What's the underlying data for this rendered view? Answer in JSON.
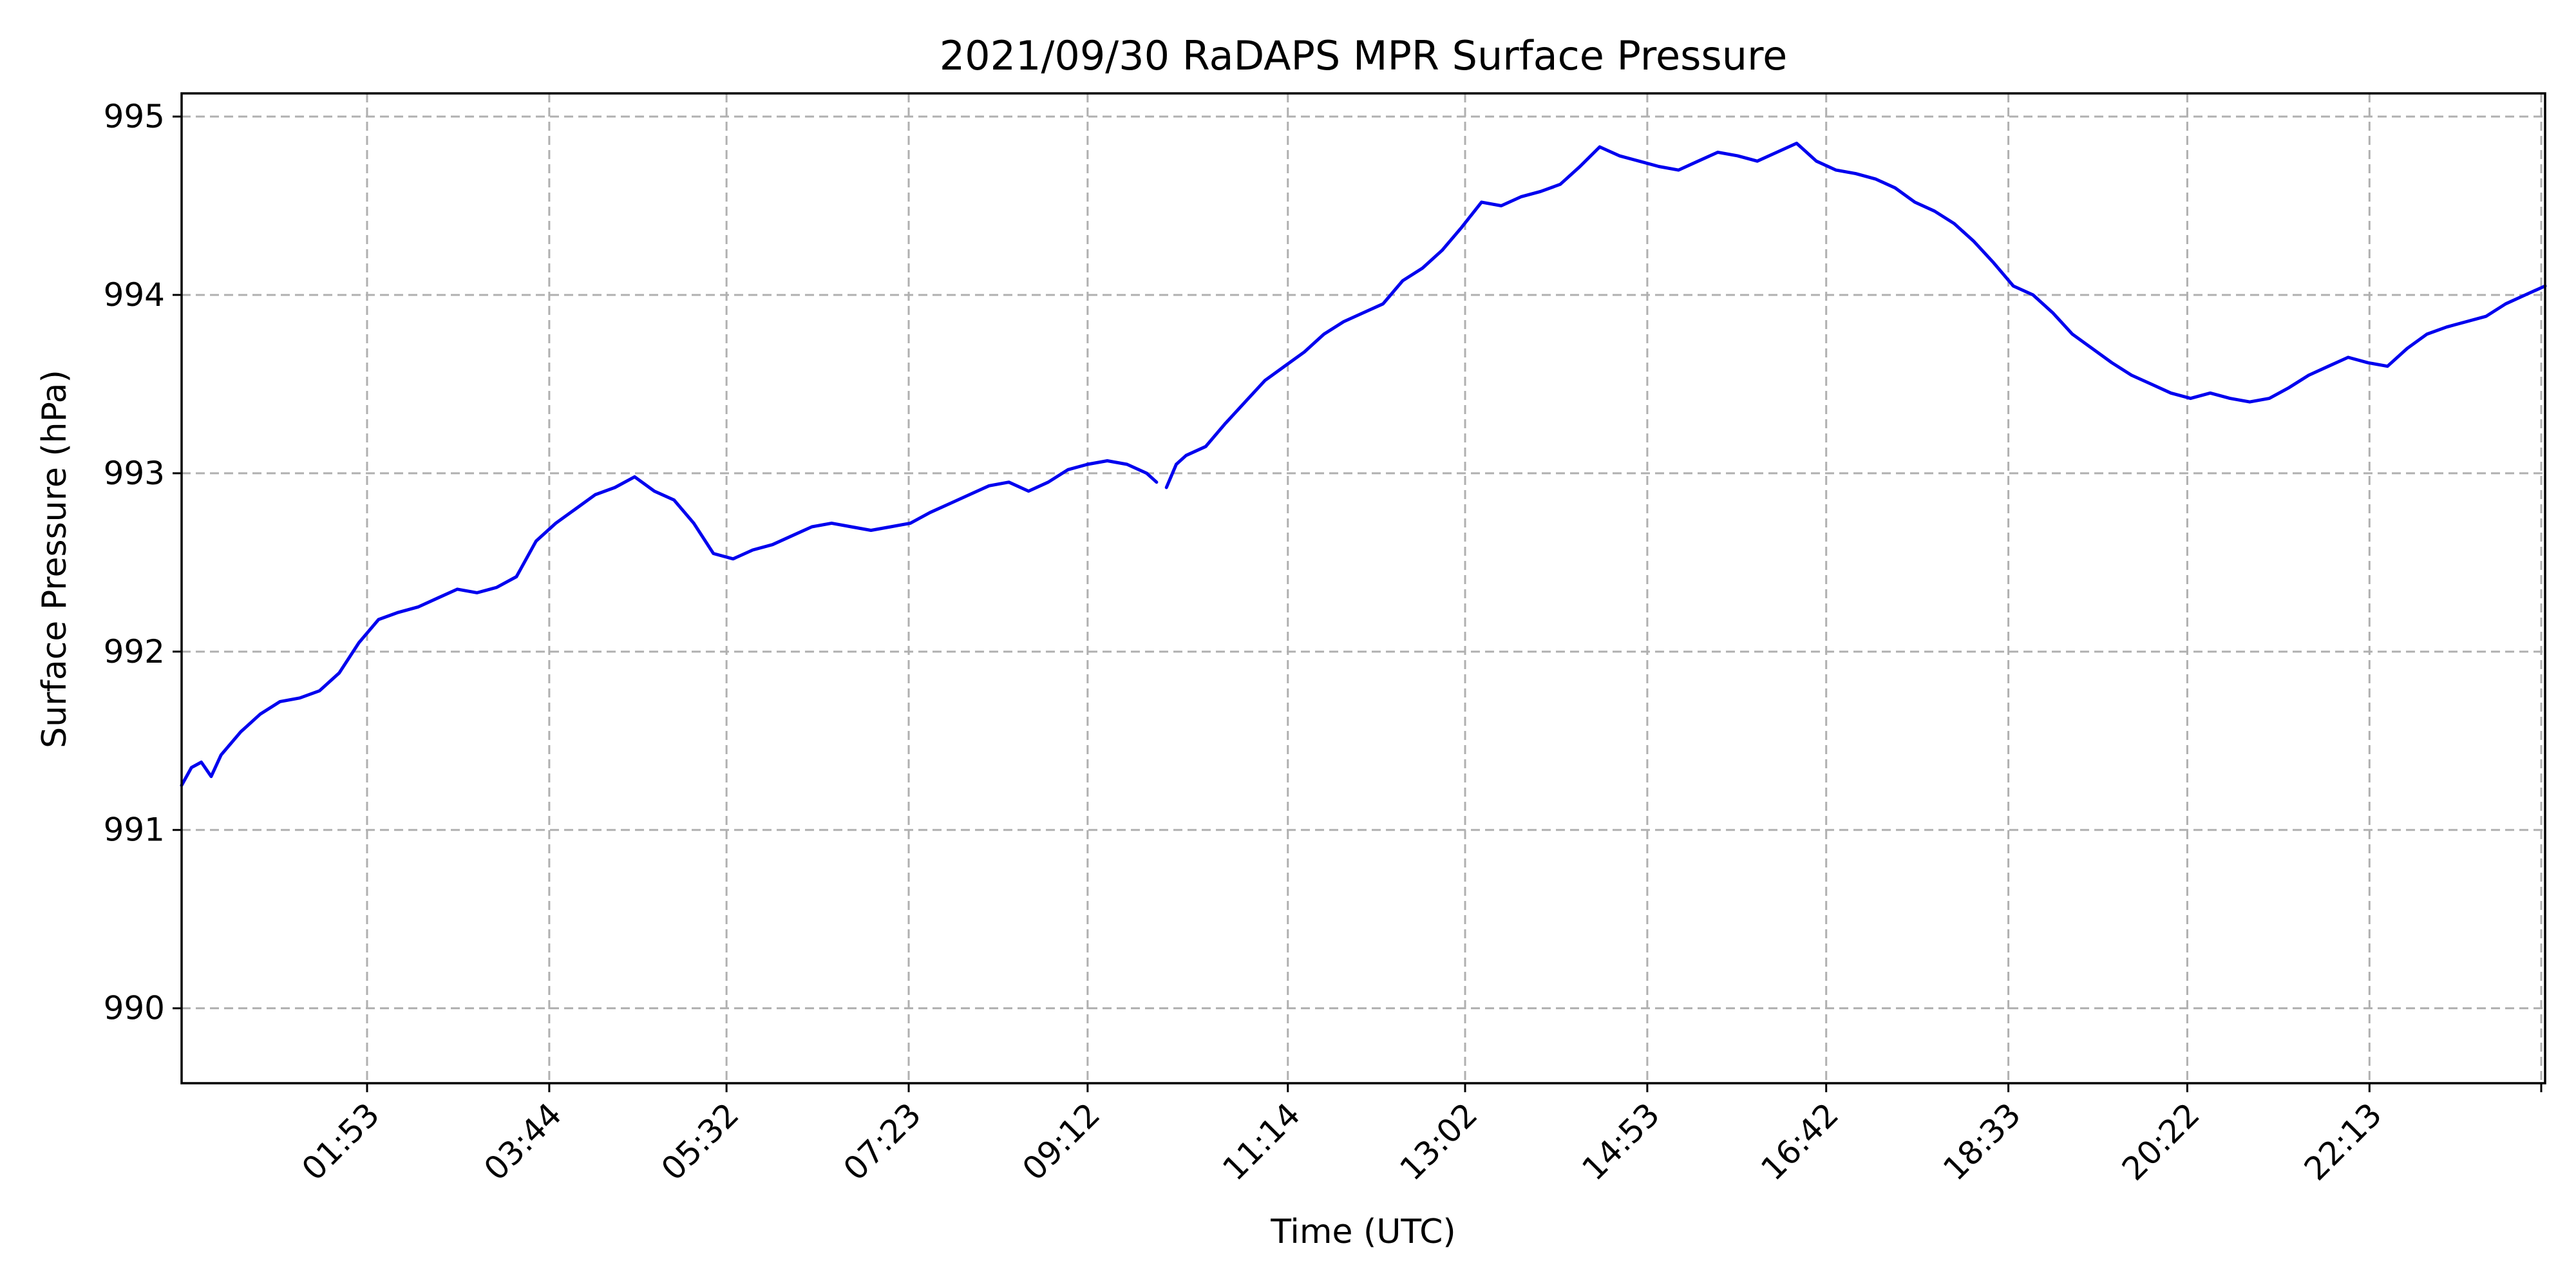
{
  "chart_data": {
    "type": "line",
    "title": "2021/09/30 RaDAPS MPR Surface Pressure",
    "xlabel": "Time (UTC)",
    "ylabel": "Surface Pressure (hPa)",
    "x_unit": "hours UTC",
    "xlim": [
      0.0,
      24.0
    ],
    "ylim": [
      989.58,
      995.13
    ],
    "grid": true,
    "legend": "none",
    "line_color": "#0000ee",
    "x_ticks": [
      {
        "value": 1.8833,
        "label": "01:53"
      },
      {
        "value": 3.7333,
        "label": "03:44"
      },
      {
        "value": 5.5333,
        "label": "05:32"
      },
      {
        "value": 7.3833,
        "label": "07:23"
      },
      {
        "value": 9.2,
        "label": "09:12"
      },
      {
        "value": 11.2333,
        "label": "11:14"
      },
      {
        "value": 13.0333,
        "label": "13:02"
      },
      {
        "value": 14.8833,
        "label": "14:53"
      },
      {
        "value": 16.7,
        "label": "16:42"
      },
      {
        "value": 18.55,
        "label": "18:33"
      },
      {
        "value": 20.3667,
        "label": "20:22"
      },
      {
        "value": 22.2167,
        "label": "22:13"
      }
    ],
    "y_ticks": [
      {
        "value": 990,
        "label": "990"
      },
      {
        "value": 991,
        "label": "991"
      },
      {
        "value": 992,
        "label": "992"
      },
      {
        "value": 993,
        "label": "993"
      },
      {
        "value": 994,
        "label": "994"
      },
      {
        "value": 995,
        "label": "995"
      }
    ],
    "series": [
      {
        "segments": [
          {
            "x": [
              0.0,
              0.1,
              0.2,
              0.3,
              0.4,
              0.6,
              0.8,
              1.0,
              1.2,
              1.4,
              1.6,
              1.8,
              2.0,
              2.2,
              2.4,
              2.6,
              2.8,
              3.0,
              3.2,
              3.4,
              3.6,
              3.8,
              4.0,
              4.2,
              4.4,
              4.6,
              4.8,
              5.0,
              5.2,
              5.4,
              5.6,
              5.8,
              6.0,
              6.2,
              6.4,
              6.6,
              6.8,
              7.0,
              7.2,
              7.4,
              7.6,
              7.8,
              8.0,
              8.2,
              8.4,
              8.6,
              8.8,
              9.0,
              9.2,
              9.4,
              9.6,
              9.8,
              9.9
            ],
            "y": [
              991.25,
              991.35,
              991.38,
              991.3,
              991.42,
              991.55,
              991.65,
              991.72,
              991.74,
              991.78,
              991.88,
              992.05,
              992.18,
              992.22,
              992.25,
              992.3,
              992.35,
              992.33,
              992.36,
              992.42,
              992.62,
              992.72,
              992.8,
              992.88,
              992.92,
              992.98,
              992.9,
              992.85,
              992.72,
              992.55,
              992.52,
              992.57,
              992.6,
              992.65,
              992.7,
              992.72,
              992.7,
              992.68,
              992.7,
              992.72,
              992.78,
              992.83,
              992.88,
              992.93,
              992.95,
              992.9,
              992.95,
              993.02,
              993.05,
              993.07,
              993.05,
              993.0,
              992.95
            ]
          },
          {
            "x": [
              10.0,
              10.1,
              10.2,
              10.4,
              10.6,
              10.8,
              11.0,
              11.2,
              11.4,
              11.6,
              11.8,
              12.0,
              12.2,
              12.4,
              12.6,
              12.8,
              13.0,
              13.2,
              13.4,
              13.6,
              13.8,
              14.0,
              14.2,
              14.4,
              14.6,
              14.8,
              15.0,
              15.2,
              15.4,
              15.6,
              15.8,
              16.0,
              16.2,
              16.4,
              16.6,
              16.8,
              17.0,
              17.2,
              17.4,
              17.6,
              17.8,
              18.0,
              18.2,
              18.4,
              18.6,
              18.8,
              19.0,
              19.2,
              19.4,
              19.6,
              19.8,
              20.0,
              20.2,
              20.4,
              20.6,
              20.8,
              21.0,
              21.2,
              21.4,
              21.6,
              21.8,
              22.0,
              22.2,
              22.4,
              22.6,
              22.8,
              23.0,
              23.2,
              23.4,
              23.6,
              23.8,
              24.0
            ],
            "y": [
              992.92,
              993.05,
              993.1,
              993.15,
              993.28,
              993.4,
              993.52,
              993.6,
              993.68,
              993.78,
              993.85,
              993.9,
              993.95,
              994.08,
              994.15,
              994.25,
              994.38,
              994.52,
              994.5,
              994.55,
              994.58,
              994.62,
              994.72,
              994.83,
              994.78,
              994.75,
              994.72,
              994.7,
              994.75,
              994.8,
              994.78,
              994.75,
              994.8,
              994.85,
              994.75,
              994.7,
              994.68,
              994.65,
              994.6,
              994.52,
              994.47,
              994.4,
              994.3,
              994.18,
              994.05,
              994.0,
              993.9,
              993.78,
              993.7,
              993.62,
              993.55,
              993.5,
              993.45,
              993.42,
              993.45,
              993.42,
              993.4,
              993.42,
              993.48,
              993.55,
              993.6,
              993.65,
              993.62,
              993.6,
              993.7,
              993.78,
              993.82,
              993.85,
              993.88,
              993.95,
              994.0,
              994.05
            ]
          }
        ]
      }
    ]
  }
}
